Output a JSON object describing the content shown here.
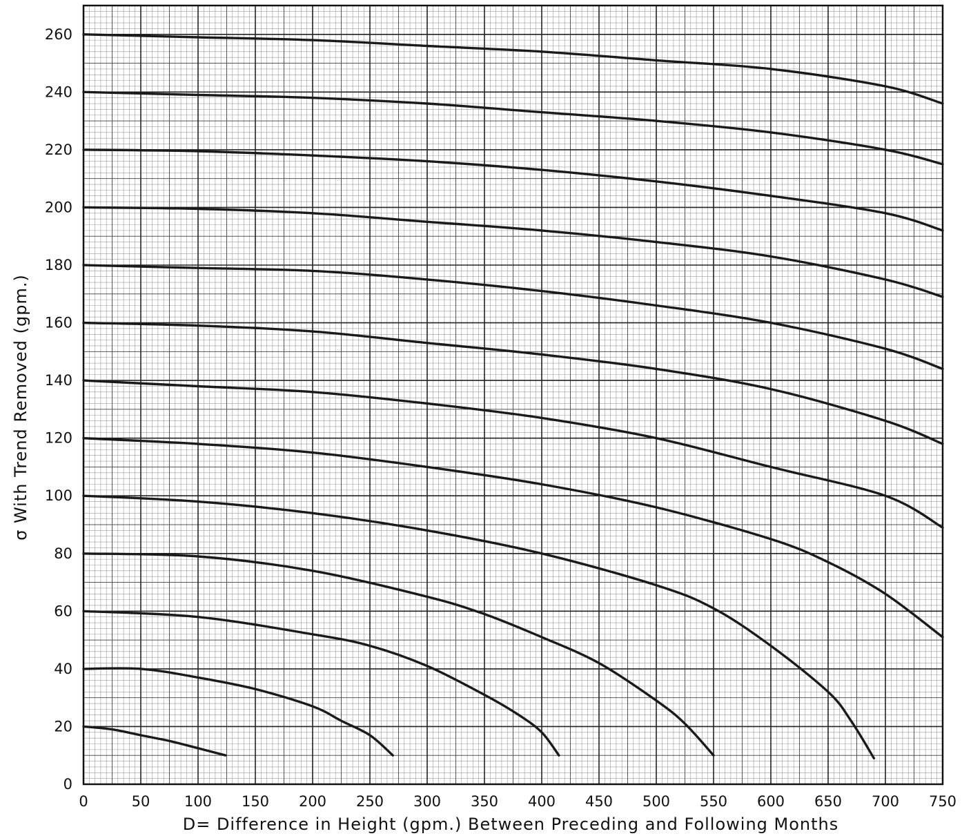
{
  "chart_data": {
    "type": "line",
    "title": "",
    "xlabel": "D= Difference in Height (gpm.) Between Preceding and Following Months",
    "ylabel": "σ With Trend Removed (gpm.)",
    "xlim": [
      0,
      750
    ],
    "ylim": [
      0,
      270
    ],
    "x_ticks": [
      0,
      50,
      100,
      150,
      200,
      250,
      300,
      350,
      400,
      450,
      500,
      550,
      600,
      650,
      700,
      750
    ],
    "x_tick_labels": [
      "0",
      "50",
      "100",
      "150",
      "200",
      "250",
      "300",
      "350",
      "400",
      "450",
      "500",
      "550",
      "600",
      "650",
      "700",
      "750"
    ],
    "y_ticks": [
      0,
      20,
      40,
      60,
      80,
      100,
      120,
      140,
      160,
      180,
      200,
      220,
      240,
      260
    ],
    "y_tick_labels": [
      "0",
      "20",
      "40",
      "60",
      "80",
      "100",
      "120",
      "140",
      "160",
      "180",
      "200",
      "220",
      "240",
      "260"
    ],
    "grid": true,
    "series": [
      {
        "x": [
          0,
          25,
          50,
          75,
          100,
          124
        ],
        "y": [
          20,
          19,
          17,
          15,
          12.5,
          10
        ]
      },
      {
        "x": [
          0,
          50,
          100,
          150,
          200,
          225,
          250,
          270
        ],
        "y": [
          40,
          40,
          37,
          33,
          27,
          22,
          17,
          10
        ]
      },
      {
        "x": [
          0,
          100,
          200,
          250,
          300,
          350,
          380,
          400,
          415
        ],
        "y": [
          60,
          58,
          52,
          48,
          41,
          31,
          24,
          18,
          10
        ]
      },
      {
        "x": [
          0,
          100,
          200,
          300,
          350,
          400,
          450,
          500,
          525,
          550
        ],
        "y": [
          80,
          79,
          74,
          65,
          59,
          51,
          42,
          29,
          21,
          10
        ]
      },
      {
        "x": [
          0,
          100,
          200,
          300,
          400,
          500,
          550,
          600,
          650,
          670,
          690
        ],
        "y": [
          100,
          98,
          94,
          88,
          80,
          69,
          61,
          48,
          32,
          22,
          9
        ]
      },
      {
        "x": [
          0,
          100,
          200,
          300,
          400,
          500,
          600,
          650,
          700,
          750
        ],
        "y": [
          120,
          118,
          115,
          110,
          104,
          96,
          85,
          77,
          66,
          51
        ]
      },
      {
        "x": [
          0,
          100,
          200,
          300,
          400,
          500,
          600,
          700,
          750
        ],
        "y": [
          140,
          138,
          136,
          132,
          127,
          120,
          110,
          100,
          89
        ]
      },
      {
        "x": [
          0,
          100,
          200,
          300,
          400,
          500,
          600,
          700,
          750
        ],
        "y": [
          160,
          159,
          157,
          153,
          149,
          144,
          137,
          126,
          118
        ]
      },
      {
        "x": [
          0,
          100,
          200,
          300,
          400,
          500,
          600,
          700,
          750
        ],
        "y": [
          180,
          179,
          178,
          175,
          171,
          166,
          160,
          151,
          144
        ]
      },
      {
        "x": [
          0,
          100,
          200,
          300,
          400,
          500,
          600,
          700,
          750
        ],
        "y": [
          200,
          199.5,
          198,
          195,
          192,
          188,
          183,
          175,
          169
        ]
      },
      {
        "x": [
          0,
          100,
          200,
          300,
          400,
          500,
          600,
          700,
          750
        ],
        "y": [
          220,
          219.5,
          218,
          216,
          213,
          209,
          204,
          198,
          192
        ]
      },
      {
        "x": [
          0,
          100,
          200,
          300,
          400,
          500,
          600,
          700,
          750
        ],
        "y": [
          240,
          239,
          238,
          236,
          233,
          230,
          226,
          220,
          215
        ]
      },
      {
        "x": [
          0,
          100,
          200,
          300,
          400,
          500,
          600,
          700,
          750
        ],
        "y": [
          260,
          259,
          258,
          256,
          254,
          251,
          248,
          242,
          236
        ]
      }
    ]
  }
}
